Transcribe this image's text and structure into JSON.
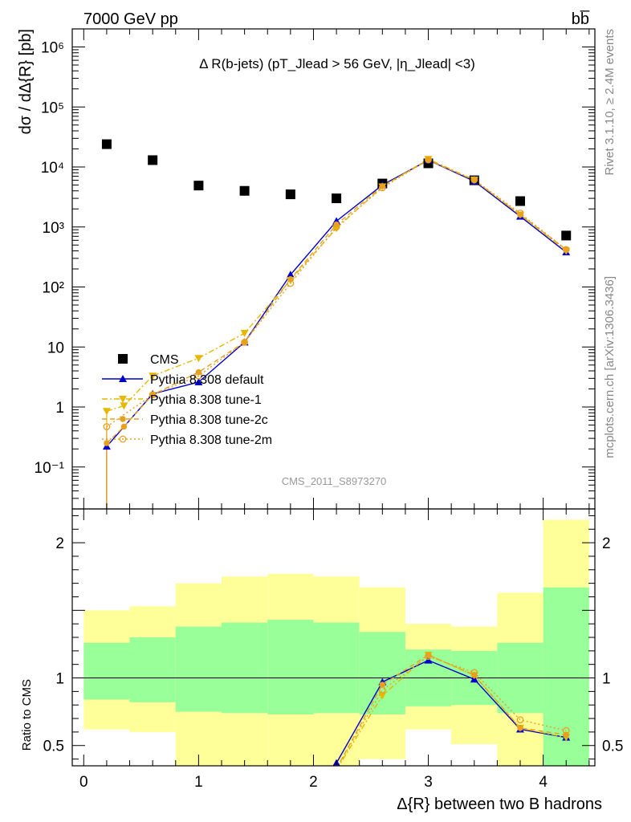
{
  "header": {
    "energy_label": "7000 GeV pp",
    "process_label": "bb̅"
  },
  "side_labels": {
    "rivet": "Rivet 3.1.10, ≥ 2.4M events",
    "mcplots": "mcplots.cern.ch [arXiv:1306.3436]"
  },
  "chart_data": [
    {
      "type": "scatter",
      "panel": "main",
      "title": "Δ R(b-jets) (pT_Jlead > 56 GeV, |η_Jlead| <3)",
      "ylabel": "dσ / dΔ{R} [pb]",
      "watermark": "CMS_2011_S8973270",
      "yscale": "log",
      "xlim": [
        -0.1,
        4.45
      ],
      "ylim": [
        0.02,
        2000000
      ],
      "x_ticks": [
        0,
        1,
        2,
        3,
        4
      ],
      "y_tick_labels": [
        "10⁻¹",
        "1",
        "10",
        "10²",
        "10³",
        "10⁴",
        "10⁵",
        "10⁶"
      ],
      "legend_position": "lower-left",
      "series": [
        {
          "name": "CMS",
          "color": "#000000",
          "marker": "square",
          "x": [
            0.2,
            0.6,
            1.0,
            1.4,
            1.8,
            2.2,
            2.6,
            3.0,
            3.4,
            3.8,
            4.2
          ],
          "y": [
            24000,
            13000,
            4900,
            4000,
            3500,
            3000,
            5300,
            11500,
            6000,
            2700,
            720
          ]
        },
        {
          "name": "Pythia 8.308 default",
          "color": "#0000cc",
          "marker": "triangle-up",
          "line": "solid",
          "x": [
            0.2,
            0.6,
            1.0,
            1.4,
            1.8,
            2.2,
            2.6,
            3.0,
            3.4,
            3.8,
            4.2
          ],
          "y": [
            0.22,
            1.65,
            2.6,
            12,
            160,
            1250,
            5000,
            13000,
            5800,
            1500,
            380
          ]
        },
        {
          "name": "Pythia 8.308 tune-1",
          "color": "#e6b800",
          "marker": "triangle-down",
          "line": "dashdot",
          "x": [
            0.2,
            0.35,
            0.6,
            1.0,
            1.4,
            1.8,
            2.2,
            2.6,
            3.0,
            3.4,
            3.8,
            4.2
          ],
          "y": [
            0.85,
            1.05,
            3.3,
            6.5,
            17,
            130,
            950,
            4700,
            13500,
            6100,
            1600,
            400
          ]
        },
        {
          "name": "Pythia 8.308 tune-2c",
          "color": "#e8a020",
          "marker": "circle",
          "line": "dashed",
          "x": [
            0.2,
            0.35,
            0.6,
            1.0,
            1.4,
            1.8,
            2.2,
            2.6,
            3.0,
            3.4,
            3.8,
            4.2
          ],
          "y": [
            0.25,
            0.47,
            1.6,
            3.8,
            12,
            135,
            1100,
            4800,
            13000,
            6000,
            1600,
            420
          ]
        },
        {
          "name": "Pythia 8.308 tune-2m",
          "color": "#e8a020",
          "marker": "open-circle",
          "line": "dotted",
          "x": [
            0.2,
            0.6,
            1.0,
            1.4,
            1.8,
            2.2,
            2.6,
            3.0,
            3.4,
            3.8,
            4.2
          ],
          "y": [
            0.47,
            1.6,
            3.3,
            12,
            115,
            1000,
            4500,
            13200,
            6100,
            1700,
            420
          ]
        }
      ]
    },
    {
      "type": "scatter",
      "panel": "ratio",
      "ylabel": "Ratio to CMS",
      "xlabel": "Δ{R} between two B hadrons",
      "xlim": [
        -0.1,
        4.45
      ],
      "ylim": [
        0.35,
        2.25
      ],
      "x_ticks": [
        0,
        1,
        2,
        3,
        4
      ],
      "y_ticks": [
        0.5,
        1,
        2
      ],
      "y_tick_labels": [
        "0.5",
        "1",
        "2"
      ],
      "reference_line": 1,
      "bands": {
        "edges": [
          0,
          0.4,
          0.8,
          1.2,
          1.6,
          2.0,
          2.4,
          2.8,
          3.2,
          3.6,
          4.0,
          4.4
        ],
        "inner_color": "#99ff99",
        "outer_color": "#ffff99",
        "inner_low": [
          0.84,
          0.82,
          0.75,
          0.74,
          0.73,
          0.74,
          0.73,
          0.79,
          0.8,
          0.74,
          0.34
        ],
        "inner_high": [
          1.26,
          1.3,
          1.38,
          1.41,
          1.43,
          1.41,
          1.34,
          1.21,
          1.2,
          1.26,
          1.67
        ],
        "outer_low": [
          0.62,
          0.6,
          0.35,
          0.35,
          0.35,
          0.35,
          0.4,
          0.62,
          0.51,
          0.35,
          0.35
        ],
        "outer_high": [
          1.5,
          1.53,
          1.7,
          1.75,
          1.77,
          1.75,
          1.67,
          1.4,
          1.38,
          1.63,
          2.17
        ]
      },
      "series": [
        {
          "name": "Pythia 8.308 default",
          "color": "#0000cc",
          "marker": "triangle-up",
          "line": "solid",
          "x": [
            2.2,
            2.6,
            3.0,
            3.4,
            3.8,
            4.2
          ],
          "y": [
            0.37,
            0.97,
            1.13,
            0.99,
            0.62,
            0.56
          ]
        },
        {
          "name": "Pythia 8.308 tune-1",
          "color": "#e6b800",
          "marker": "triangle-down",
          "line": "dashdot",
          "x": [
            2.2,
            2.6,
            3.0,
            3.4,
            3.8,
            4.2
          ],
          "y": [
            0.32,
            0.87,
            1.17,
            1.02,
            0.63,
            0.56
          ]
        },
        {
          "name": "Pythia 8.308 tune-2c",
          "color": "#e8a020",
          "marker": "circle",
          "line": "dashed",
          "x": [
            2.2,
            2.6,
            3.0,
            3.4,
            3.8,
            4.2
          ],
          "y": [
            0.33,
            0.95,
            1.17,
            1.02,
            0.63,
            0.58
          ]
        },
        {
          "name": "Pythia 8.308 tune-2m",
          "color": "#e8a020",
          "marker": "open-circle",
          "line": "dotted",
          "x": [
            2.2,
            2.6,
            3.0,
            3.4,
            3.8,
            4.2
          ],
          "y": [
            0.33,
            0.91,
            1.16,
            1.04,
            0.69,
            0.61
          ]
        }
      ]
    }
  ]
}
